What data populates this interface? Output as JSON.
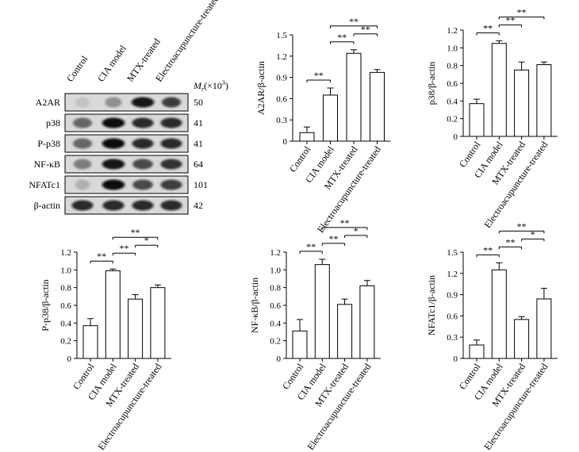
{
  "western_blot": {
    "lane_labels": [
      "Control",
      "CIA model",
      "MTX-treated",
      "Electroacupuncture-treated"
    ],
    "mw_header_symbol": "M",
    "mw_header_subscript": "r",
    "mw_header_unit": "(×10",
    "mw_header_exp": "3",
    "mw_header_close": ")",
    "rows": [
      {
        "label": "A2AR",
        "mw": "50",
        "intensity": [
          0.1,
          0.35,
          0.95,
          0.75
        ],
        "spread": [
          0.6,
          0.7,
          0.95,
          0.8
        ]
      },
      {
        "label": "p38",
        "mw": "41",
        "intensity": [
          0.55,
          1.0,
          0.85,
          0.85
        ],
        "spread": [
          0.8,
          0.95,
          0.9,
          0.9
        ]
      },
      {
        "label": "P-p38",
        "mw": "41",
        "intensity": [
          0.55,
          1.0,
          0.85,
          0.85
        ],
        "spread": [
          0.8,
          0.95,
          0.9,
          0.9
        ]
      },
      {
        "label": "NF-κB",
        "mw": "64",
        "intensity": [
          0.45,
          0.95,
          0.7,
          0.8
        ],
        "spread": [
          0.75,
          0.95,
          0.85,
          0.9
        ]
      },
      {
        "label": "NFATc1",
        "mw": "101",
        "intensity": [
          0.2,
          1.0,
          0.7,
          0.75
        ],
        "spread": [
          0.6,
          0.95,
          0.85,
          0.9
        ]
      },
      {
        "label": "β-actin",
        "mw": "42",
        "intensity": [
          0.85,
          0.85,
          0.85,
          0.85
        ],
        "spread": [
          0.9,
          0.9,
          0.9,
          0.9
        ]
      }
    ]
  },
  "chart_data": [
    {
      "type": "bar",
      "ylabel": "A2AR/β-actin",
      "categories": [
        "Control",
        "CIA model",
        "MTX-treated",
        "Electroacupuncture-treated"
      ],
      "values": [
        0.12,
        0.65,
        1.24,
        0.97
      ],
      "errors": [
        0.08,
        0.1,
        0.05,
        0.04
      ],
      "ylim": [
        0,
        1.5
      ],
      "yticks": [
        "0",
        "0.3",
        "0.6",
        "0.9",
        "1.2",
        "1.5"
      ],
      "significance": [
        {
          "from": 0,
          "to": 1,
          "label": "**"
        },
        {
          "from": 1,
          "to": 2,
          "label": "**"
        },
        {
          "from": 2,
          "to": 3,
          "label": "**"
        },
        {
          "from": 1,
          "to": 3,
          "label": "**"
        }
      ]
    },
    {
      "type": "bar",
      "ylabel": "p38/β-actin",
      "categories": [
        "Control",
        "CIA model",
        "MTX-treated",
        "Electroacupuncture-treated"
      ],
      "values": [
        0.37,
        1.05,
        0.75,
        0.81
      ],
      "errors": [
        0.05,
        0.03,
        0.09,
        0.03
      ],
      "ylim": [
        0,
        1.2
      ],
      "yticks": [
        "0",
        "0.2",
        "0.4",
        "0.6",
        "0.8",
        "1.0",
        "1.2"
      ],
      "significance": [
        {
          "from": 0,
          "to": 1,
          "label": "**"
        },
        {
          "from": 1,
          "to": 2,
          "label": "**"
        },
        {
          "from": 1,
          "to": 3,
          "label": "**"
        }
      ]
    },
    {
      "type": "bar",
      "ylabel": "P-p38/β-actin",
      "categories": [
        "Control",
        "CIA model",
        "MTX-treated",
        "Electroacupuncture-treated"
      ],
      "values": [
        0.37,
        0.99,
        0.67,
        0.8
      ],
      "errors": [
        0.08,
        0.02,
        0.05,
        0.03
      ],
      "ylim": [
        0,
        1.2
      ],
      "yticks": [
        "0",
        "0.2",
        "0.4",
        "0.6",
        "0.8",
        "1.0",
        "1.2"
      ],
      "significance": [
        {
          "from": 0,
          "to": 1,
          "label": "**"
        },
        {
          "from": 1,
          "to": 2,
          "label": "**"
        },
        {
          "from": 2,
          "to": 3,
          "label": "*"
        },
        {
          "from": 1,
          "to": 3,
          "label": "**"
        }
      ]
    },
    {
      "type": "bar",
      "ylabel": "NF-κB/β-actin",
      "categories": [
        "Control",
        "CIA model",
        "MTX-treated",
        "Electroacupuncture-treated"
      ],
      "values": [
        0.31,
        1.06,
        0.61,
        0.82
      ],
      "errors": [
        0.13,
        0.06,
        0.06,
        0.06
      ],
      "ylim": [
        0,
        1.2
      ],
      "yticks": [
        "0",
        "0.2",
        "0.4",
        "0.6",
        "0.8",
        "1.0",
        "1.2"
      ],
      "significance": [
        {
          "from": 0,
          "to": 1,
          "label": "**"
        },
        {
          "from": 1,
          "to": 2,
          "label": "**"
        },
        {
          "from": 2,
          "to": 3,
          "label": "*"
        },
        {
          "from": 1,
          "to": 3,
          "label": "**"
        }
      ]
    },
    {
      "type": "bar",
      "ylabel": "NFATc1/β-actin",
      "categories": [
        "Control",
        "CIA model",
        "MTX-treated",
        "Electroacupuncture-treated"
      ],
      "values": [
        0.19,
        1.25,
        0.55,
        0.84
      ],
      "errors": [
        0.07,
        0.1,
        0.04,
        0.15
      ],
      "ylim": [
        0,
        1.5
      ],
      "yticks": [
        "0",
        "0.3",
        "0.6",
        "0.9",
        "1.2",
        "1.5"
      ],
      "significance": [
        {
          "from": 0,
          "to": 1,
          "label": "**"
        },
        {
          "from": 1,
          "to": 2,
          "label": "**"
        },
        {
          "from": 2,
          "to": 3,
          "label": "*"
        },
        {
          "from": 1,
          "to": 3,
          "label": "**"
        }
      ]
    }
  ]
}
